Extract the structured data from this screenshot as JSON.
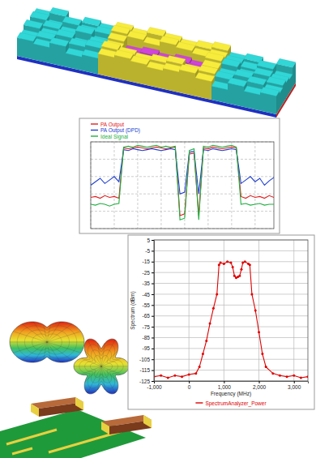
{
  "chart_data": [
    {
      "type": "bar3d",
      "cells": [
        [
          7,
          9,
          6,
          8,
          7,
          9,
          8,
          10,
          9,
          8,
          9,
          10,
          7,
          8,
          6,
          9
        ],
        [
          8,
          6,
          9,
          7,
          8,
          10,
          9,
          8,
          10,
          9,
          8,
          9,
          8,
          7,
          9,
          6
        ],
        [
          6,
          8,
          7,
          9,
          6,
          9,
          5,
          6,
          5,
          6,
          5,
          10,
          9,
          6,
          8,
          7
        ],
        [
          9,
          7,
          8,
          6,
          8,
          8,
          6,
          5,
          6,
          5,
          6,
          9,
          7,
          8,
          6,
          8
        ],
        [
          7,
          8,
          6,
          8,
          9,
          10,
          9,
          8,
          9,
          10,
          8,
          9,
          8,
          6,
          9,
          7
        ],
        [
          8,
          7,
          9,
          6,
          7,
          9,
          10,
          9,
          8,
          9,
          10,
          8,
          6,
          9,
          7,
          8
        ]
      ],
      "colors": [
        [
          "#2ec8c8",
          "#2ec8c8",
          "#2ec8c8",
          "#2ec8c8",
          "#2ec8c8",
          "#e6dc38",
          "#e6dc38",
          "#e6dc38",
          "#e6dc38",
          "#e6dc38",
          "#e6dc38",
          "#e6dc38",
          "#2ec8c8",
          "#2ec8c8",
          "#2ec8c8",
          "#2ec8c8"
        ],
        [
          "#2ec8c8",
          "#2ec8c8",
          "#2ec8c8",
          "#2ec8c8",
          "#2ec8c8",
          "#e6dc38",
          "#e6dc38",
          "#e6dc38",
          "#e6dc38",
          "#e6dc38",
          "#e6dc38",
          "#e6dc38",
          "#2ec8c8",
          "#2ec8c8",
          "#2ec8c8",
          "#2ec8c8"
        ],
        [
          "#2ec8c8",
          "#2ec8c8",
          "#2ec8c8",
          "#2ec8c8",
          "#2ec8c8",
          "#e6dc38",
          "#c040c8",
          "#c040c8",
          "#c040c8",
          "#c040c8",
          "#c040c8",
          "#e6dc38",
          "#2ec8c8",
          "#2ec8c8",
          "#2ec8c8",
          "#2ec8c8"
        ],
        [
          "#2ec8c8",
          "#2ec8c8",
          "#2ec8c8",
          "#2ec8c8",
          "#2ec8c8",
          "#e6dc38",
          "#c040c8",
          "#c040c8",
          "#c040c8",
          "#c040c8",
          "#c040c8",
          "#e6dc38",
          "#2ec8c8",
          "#2ec8c8",
          "#2ec8c8",
          "#2ec8c8"
        ],
        [
          "#2ec8c8",
          "#2ec8c8",
          "#2ec8c8",
          "#2ec8c8",
          "#2ec8c8",
          "#e6dc38",
          "#e6dc38",
          "#e6dc38",
          "#e6dc38",
          "#e6dc38",
          "#e6dc38",
          "#e6dc38",
          "#2ec8c8",
          "#2ec8c8",
          "#2ec8c8",
          "#2ec8c8"
        ],
        [
          "#2ec8c8",
          "#2ec8c8",
          "#2ec8c8",
          "#2ec8c8",
          "#2ec8c8",
          "#e6dc38",
          "#e6dc38",
          "#e6dc38",
          "#e6dc38",
          "#e6dc38",
          "#e6dc38",
          "#e6dc38",
          "#2ec8c8",
          "#2ec8c8",
          "#2ec8c8",
          "#2ec8c8"
        ]
      ],
      "tick_labels": false
    },
    {
      "type": "line",
      "x": [
        0,
        1,
        2,
        3,
        4,
        5,
        6,
        7,
        8,
        9,
        10,
        11,
        12,
        13,
        14,
        15,
        16,
        17,
        18,
        19,
        20,
        21,
        22,
        23,
        24,
        25,
        26,
        27,
        28,
        29,
        30,
        31,
        32,
        33,
        34,
        35,
        36,
        37,
        38,
        39
      ],
      "xlim": [
        0,
        39
      ],
      "xticks": [
        0,
        5,
        10,
        15,
        20,
        25,
        30,
        35
      ],
      "ylim": [
        -100,
        0
      ],
      "yticks": [
        -100,
        -80,
        -60,
        -40,
        -20,
        0
      ],
      "grid": true,
      "tick_labels": false,
      "legend": "upper left",
      "series": [
        {
          "name": "PA Output",
          "color": "#e02020",
          "values": [
            -64,
            -63,
            -65,
            -62,
            -64,
            -63,
            -65,
            -7,
            -8,
            -7,
            -6,
            -7,
            -8,
            -7,
            -6,
            -7,
            -8,
            -7,
            -6,
            -85,
            -83,
            -14,
            -13,
            -85,
            -7,
            -8,
            -6,
            -7,
            -8,
            -7,
            -6,
            -7,
            -63,
            -65,
            -62,
            -64,
            -63,
            -65,
            -62,
            -64
          ]
        },
        {
          "name": "PA Output (DPD)",
          "color": "#2040d0",
          "values": [
            -50,
            -46,
            -42,
            -48,
            -44,
            -40,
            -46,
            -9,
            -10,
            -8,
            -9,
            -10,
            -9,
            -8,
            -9,
            -10,
            -9,
            -8,
            -9,
            -60,
            -58,
            -12,
            -11,
            -60,
            -9,
            -10,
            -8,
            -9,
            -10,
            -9,
            -8,
            -9,
            -48,
            -44,
            -40,
            -46,
            -42,
            -50,
            -45,
            -41
          ]
        },
        {
          "name": "Ideal Signal",
          "color": "#20b040",
          "values": [
            -72,
            -73,
            -71,
            -72,
            -74,
            -72,
            -71,
            -6,
            -5,
            -6,
            -4,
            -5,
            -6,
            -5,
            -4,
            -6,
            -5,
            -6,
            -5,
            -90,
            -88,
            -10,
            -8,
            -90,
            -5,
            -6,
            -4,
            -5,
            -6,
            -5,
            -4,
            -6,
            -72,
            -71,
            -73,
            -72,
            -71,
            -73,
            -72,
            -72
          ]
        }
      ]
    },
    {
      "type": "line",
      "xlabel": "Frequency (MHz)",
      "ylabel": "Spectrum (dBm)",
      "x": [
        -1000,
        -800,
        -600,
        -400,
        -200,
        0,
        200,
        300,
        400,
        500,
        600,
        700,
        800,
        860,
        900,
        1000,
        1100,
        1200,
        1250,
        1300,
        1350,
        1400,
        1450,
        1500,
        1540,
        1600,
        1700,
        1740,
        1800,
        1900,
        2000,
        2100,
        2200,
        2400,
        2600,
        2800,
        3000,
        3200,
        3400
      ],
      "xlim": [
        -1000,
        3400
      ],
      "xticks": [
        {
          "value": -1000,
          "label": "-1,000"
        },
        0,
        {
          "value": 1000,
          "label": "1,000"
        },
        {
          "value": 2000,
          "label": "2,000"
        },
        {
          "value": 3000,
          "label": "3,000"
        }
      ],
      "ylim": [
        -125,
        5
      ],
      "yticks": [
        5,
        -5,
        -15,
        -25,
        -35,
        -45,
        -55,
        -65,
        -75,
        -85,
        -95,
        -105,
        -115,
        -125
      ],
      "grid": true,
      "legend": "bottom",
      "series": [
        {
          "name": "SpectrumAnalyzer_Power",
          "color": "#e00000",
          "marker": "circle",
          "values": [
            -121,
            -120,
            -122,
            -120,
            -121,
            -119,
            -118,
            -112,
            -100,
            -88,
            -72,
            -58,
            -45,
            -18,
            -16,
            -17,
            -15,
            -16,
            -20,
            -28,
            -30,
            -29,
            -28,
            -22,
            -16,
            -15,
            -17,
            -18,
            -45,
            -60,
            -80,
            -100,
            -112,
            -118,
            -120,
            -121,
            -120,
            -122,
            -121
          ]
        }
      ]
    }
  ]
}
